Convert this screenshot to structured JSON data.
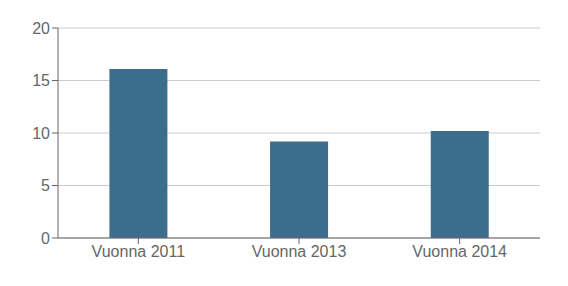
{
  "chart_data": {
    "type": "bar",
    "categories": [
      "Vuonna 2011",
      "Vuonna 2013",
      "Vuonna 2014"
    ],
    "values": [
      16.1,
      9.2,
      10.2
    ],
    "color": "#3d6d8e",
    "ylim": [
      0,
      20
    ],
    "yticks": [
      0,
      5,
      10,
      15,
      20
    ],
    "grid": true
  }
}
